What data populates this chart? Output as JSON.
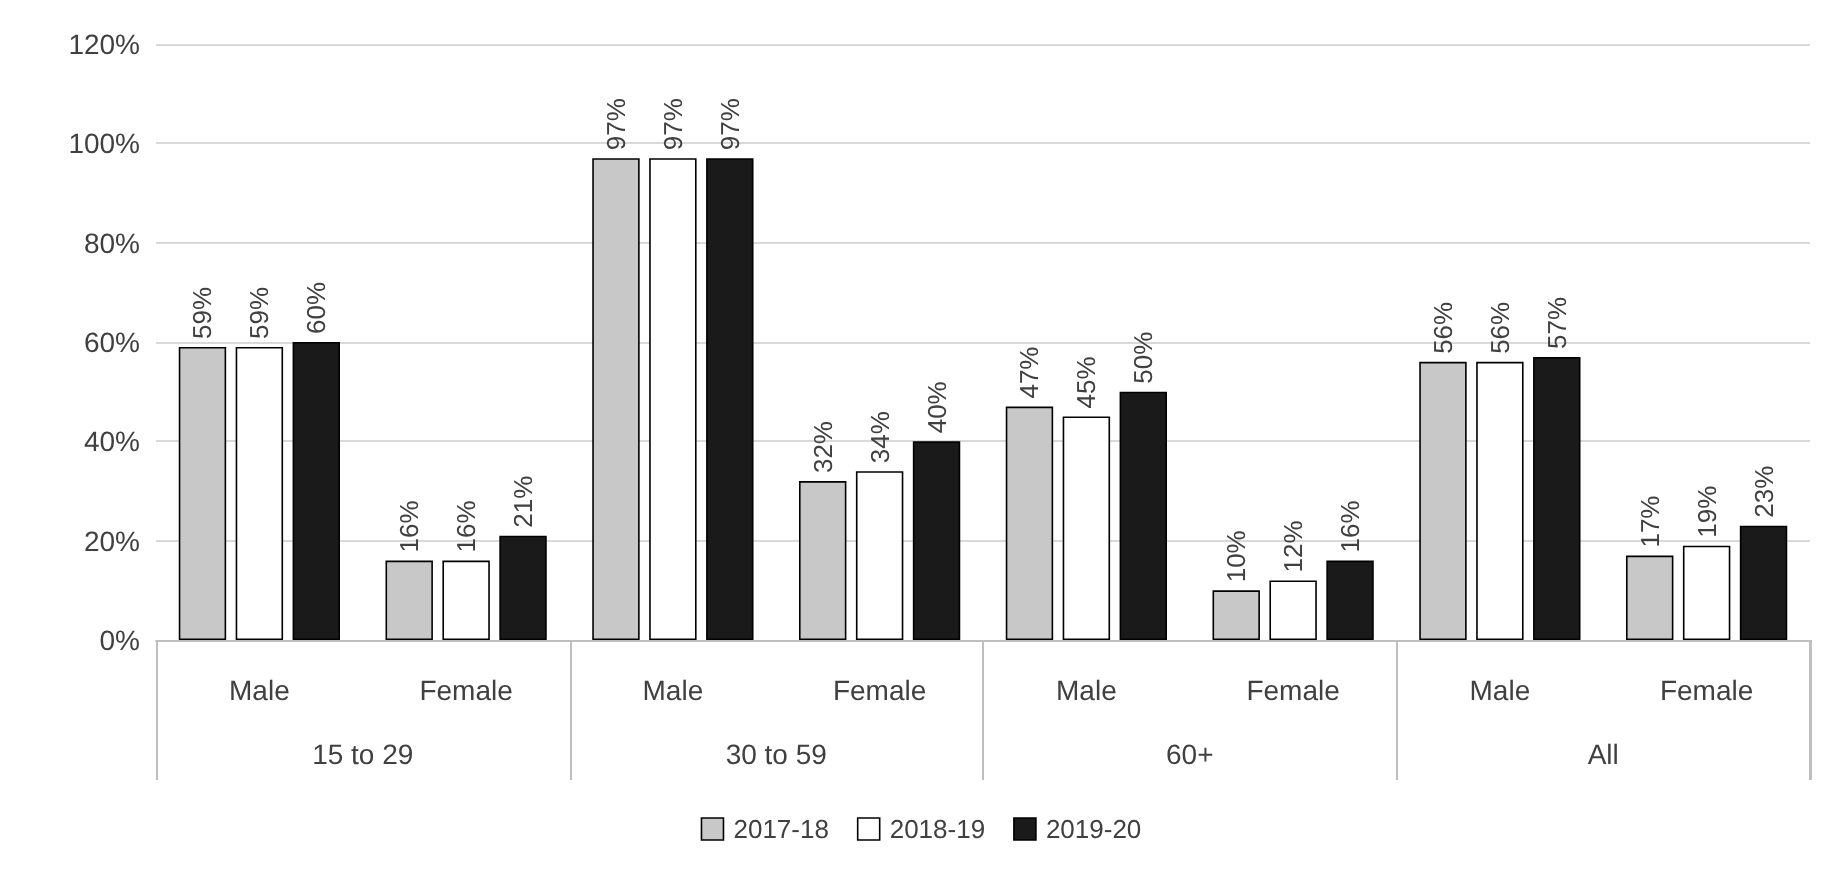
{
  "chart_data": {
    "type": "bar",
    "categories": [
      "Male",
      "Female",
      "Male",
      "Female",
      "Male",
      "Female",
      "Male",
      "Female"
    ],
    "annotations": [
      "15 to 29",
      "30 to 59",
      "60+",
      "All"
    ],
    "series": [
      {
        "name": "2017-18",
        "color": "#c8c8c8",
        "values": [
          59,
          16,
          97,
          32,
          47,
          10,
          56,
          17
        ],
        "value_labels": [
          "59%",
          "16%",
          "97%",
          "32%",
          "47%",
          "10%",
          "56%",
          "17%"
        ]
      },
      {
        "name": "2018-19",
        "color": "#ffffff",
        "values": [
          59,
          16,
          97,
          34,
          45,
          12,
          56,
          19
        ],
        "value_labels": [
          "59%",
          "16%",
          "97%",
          "34%",
          "45%",
          "12%",
          "56%",
          "19%"
        ]
      },
      {
        "name": "2019-20",
        "color": "#1a1a1a",
        "values": [
          60,
          21,
          97,
          40,
          50,
          16,
          57,
          23
        ],
        "value_labels": [
          "60%",
          "21%",
          "97%",
          "40%",
          "50%",
          "16%",
          "57%",
          "23%"
        ]
      }
    ],
    "ylim": [
      0,
      120
    ],
    "yticks": [
      {
        "value": 0,
        "label": "0%"
      },
      {
        "value": 20,
        "label": "20%"
      },
      {
        "value": 40,
        "label": "40%"
      },
      {
        "value": 60,
        "label": "60%"
      },
      {
        "value": 80,
        "label": "80%"
      },
      {
        "value": 100,
        "label": "100%"
      },
      {
        "value": 120,
        "label": "120%"
      }
    ],
    "grid": "y",
    "legend": "bottom"
  }
}
